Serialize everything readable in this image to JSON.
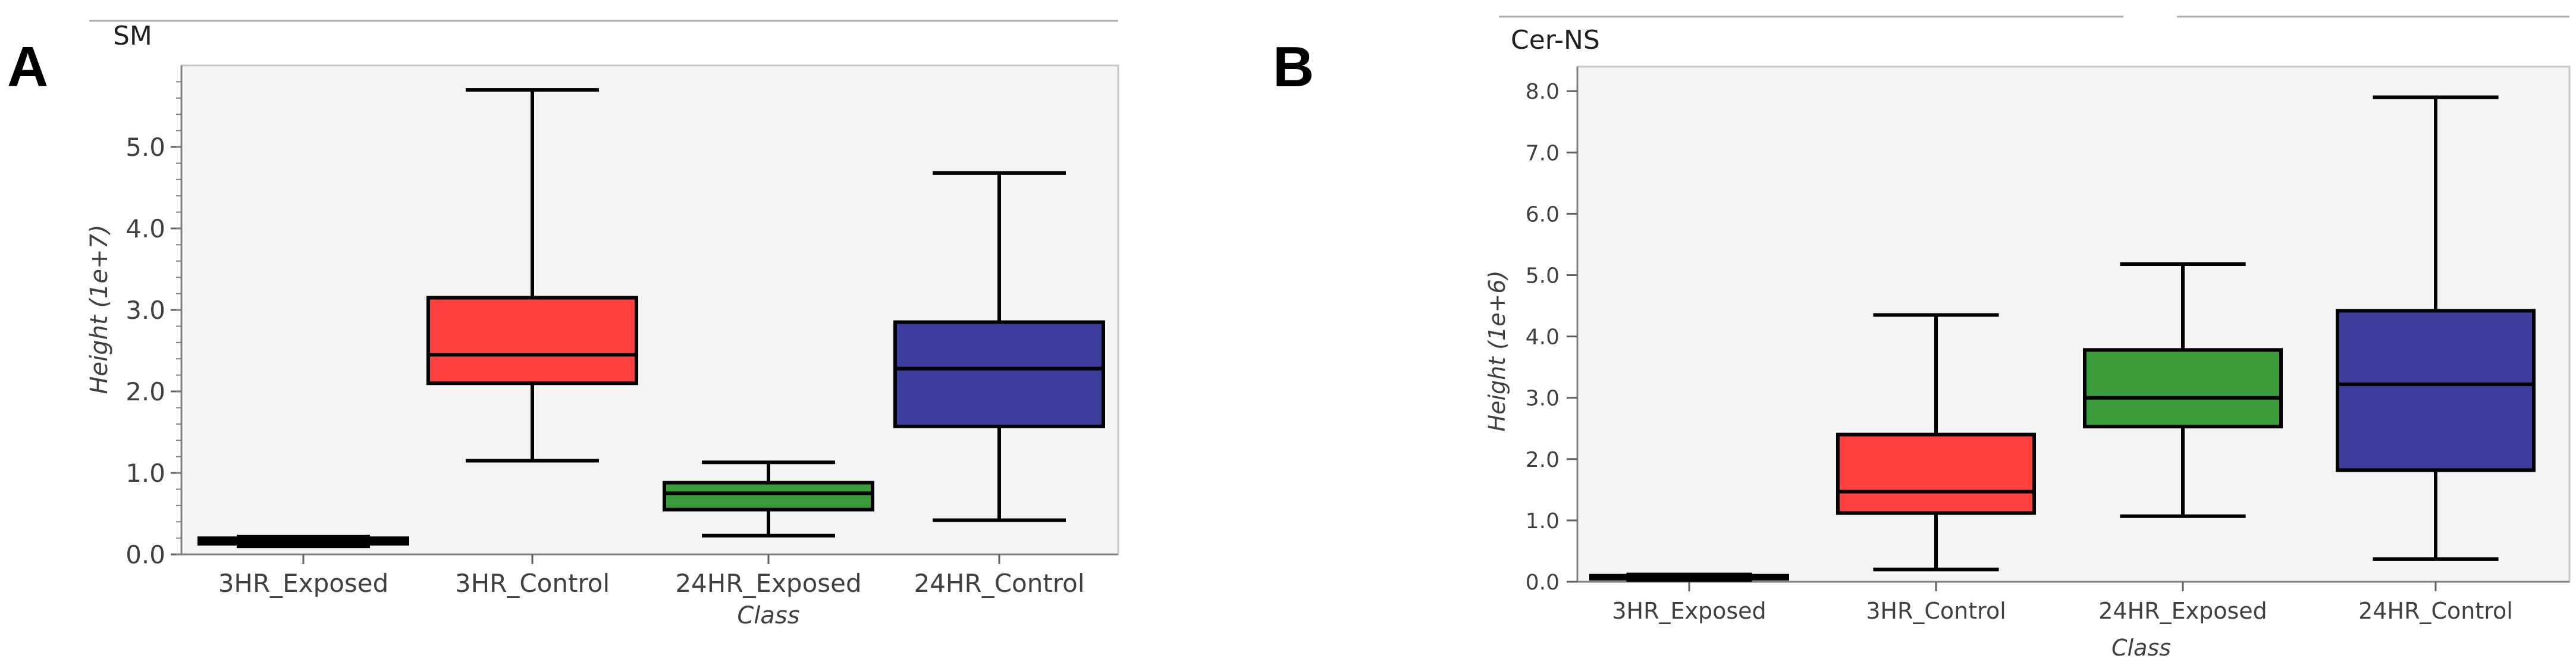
{
  "panels": [
    {
      "letter": "A"
    },
    {
      "letter": "B"
    }
  ],
  "chart_data": [
    {
      "type": "box",
      "title": "SM",
      "xlabel": "Class",
      "ylabel": "Height (1e+7)",
      "ylim": [
        0.0,
        6.0
      ],
      "yticks": [
        0.0,
        1.0,
        2.0,
        3.0,
        4.0,
        5.0
      ],
      "ytick_labels": [
        "0.0",
        "1.0",
        "2.0",
        "3.0",
        "4.0",
        "5.0"
      ],
      "categories": [
        "3HR_Exposed",
        "3HR_Control",
        "24HR_Exposed",
        "24HR_Control"
      ],
      "boxes": [
        {
          "category": "3HR_Exposed",
          "whisker_low": 0.1,
          "q1": 0.13,
          "median": 0.17,
          "q3": 0.2,
          "whisker_high": 0.22,
          "color": "#000000"
        },
        {
          "category": "3HR_Control",
          "whisker_low": 1.15,
          "q1": 2.1,
          "median": 2.45,
          "q3": 3.15,
          "whisker_high": 5.7,
          "color": "#ff4040"
        },
        {
          "category": "24HR_Exposed",
          "whisker_low": 0.23,
          "q1": 0.55,
          "median": 0.75,
          "q3": 0.88,
          "whisker_high": 1.13,
          "color": "#3a9a3a"
        },
        {
          "category": "24HR_Control",
          "whisker_low": 0.42,
          "q1": 1.57,
          "median": 2.28,
          "q3": 2.85,
          "whisker_high": 4.68,
          "color": "#3d3d9e"
        }
      ]
    },
    {
      "type": "box",
      "title": "Cer-NS",
      "xlabel": "Class",
      "ylabel": "Height (1e+6)",
      "ylim": [
        0.0,
        8.4
      ],
      "yticks": [
        0.0,
        1.0,
        2.0,
        3.0,
        4.0,
        5.0,
        6.0,
        7.0,
        8.0
      ],
      "ytick_labels": [
        "0.0",
        "1.0",
        "2.0",
        "3.0",
        "4.0",
        "5.0",
        "6.0",
        "7.0",
        "8.0"
      ],
      "categories": [
        "3HR_Exposed",
        "3HR_Control",
        "24HR_Exposed",
        "24HR_Control"
      ],
      "boxes": [
        {
          "category": "3HR_Exposed",
          "whisker_low": 0.03,
          "q1": 0.05,
          "median": 0.08,
          "q3": 0.1,
          "whisker_high": 0.12,
          "color": "#000000"
        },
        {
          "category": "3HR_Control",
          "whisker_low": 0.2,
          "q1": 1.12,
          "median": 1.47,
          "q3": 2.4,
          "whisker_high": 4.35,
          "color": "#ff4040"
        },
        {
          "category": "24HR_Exposed",
          "whisker_low": 1.07,
          "q1": 2.53,
          "median": 3.0,
          "q3": 3.78,
          "whisker_high": 5.18,
          "color": "#3a9a3a"
        },
        {
          "category": "24HR_Control",
          "whisker_low": 0.37,
          "q1": 1.82,
          "median": 3.22,
          "q3": 4.42,
          "whisker_high": 7.9,
          "color": "#3d3d9e"
        }
      ]
    }
  ]
}
